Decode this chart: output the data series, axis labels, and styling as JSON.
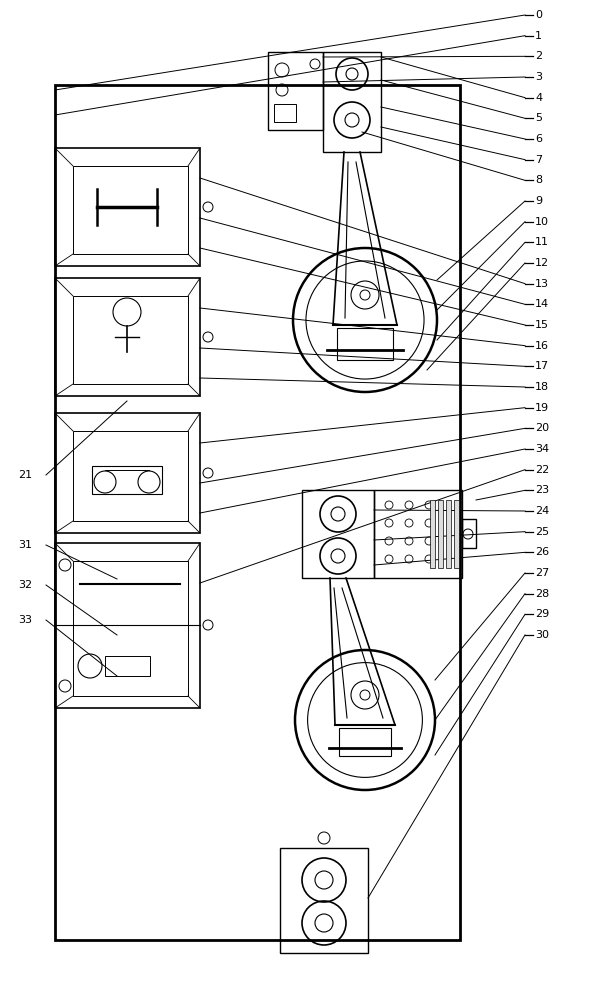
{
  "bg_color": "#ffffff",
  "line_color": "#000000",
  "fig_width": 5.99,
  "fig_height": 10.0,
  "labels_right": [
    "0",
    "1",
    "2",
    "3",
    "4",
    "5",
    "6",
    "7",
    "8",
    "9",
    "10",
    "11",
    "12",
    "13",
    "14",
    "15",
    "16",
    "17",
    "18",
    "19",
    "20",
    "34",
    "22",
    "23",
    "24",
    "25",
    "26",
    "27",
    "28",
    "29",
    "30"
  ],
  "labels_left": [
    "21",
    "31",
    "32",
    "33"
  ],
  "lw": 1.0
}
